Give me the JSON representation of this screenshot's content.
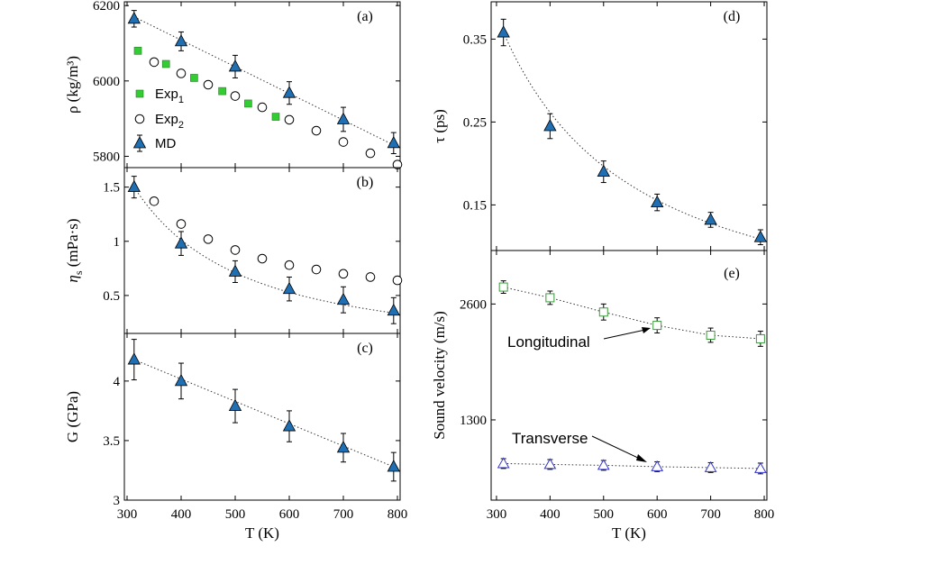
{
  "chart_data": [
    {
      "id": "a",
      "type": "scatter",
      "panel_label": "(a)",
      "ylabel": "ρ (kg/m³)",
      "xlim": [
        295,
        805
      ],
      "ylim": [
        5770,
        6210
      ],
      "yticks": [
        5800,
        6000,
        6200
      ],
      "ytick_labels": [
        "5800",
        "6000",
        "6200"
      ],
      "series": [
        {
          "name": "Exp1",
          "label_base": "Exp",
          "label_sub": "1",
          "marker": "square",
          "color": "#33cc33",
          "x": [
            320,
            372,
            424,
            476,
            524,
            575
          ],
          "y": [
            6080,
            6045,
            6008,
            5973,
            5940,
            5905
          ]
        },
        {
          "name": "Exp2",
          "label_base": "Exp",
          "label_sub": "2",
          "marker": "circle",
          "x": [
            350,
            400,
            450,
            500,
            550,
            600,
            650,
            700,
            750,
            800
          ],
          "y": [
            6050,
            6020,
            5990,
            5960,
            5930,
            5897,
            5868,
            5838,
            5808,
            5778
          ]
        },
        {
          "name": "MD",
          "label_base": "MD",
          "label_sub": "",
          "marker": "triangle",
          "color": "#1f6fb2",
          "x": [
            313,
            400,
            500,
            600,
            700,
            793
          ],
          "y": [
            6165,
            6105,
            6038,
            5968,
            5898,
            5835
          ],
          "err": [
            22,
            25,
            30,
            30,
            32,
            28
          ]
        }
      ],
      "fit": {
        "x": [
          313,
          793
        ],
        "y": [
          6170,
          5830
        ]
      },
      "legend": "left"
    },
    {
      "id": "b",
      "type": "scatter",
      "panel_label": "(b)",
      "ylabel_base": "η",
      "ylabel_sub": "s",
      "ylabel_rest": " (mPa·s)",
      "xlim": [
        295,
        805
      ],
      "ylim": [
        0.15,
        1.68
      ],
      "yticks": [
        0.5,
        1.0,
        1.5
      ],
      "ytick_labels": [
        "0.5",
        "1",
        "1.5"
      ],
      "series": [
        {
          "name": "Exp2",
          "marker": "circle",
          "x": [
            350,
            400,
            450,
            500,
            550,
            600,
            650,
            700,
            750,
            800
          ],
          "y": [
            1.37,
            1.16,
            1.02,
            0.92,
            0.84,
            0.78,
            0.74,
            0.7,
            0.67,
            0.64
          ]
        },
        {
          "name": "MD",
          "marker": "triangle",
          "color": "#1f6fb2",
          "x": [
            313,
            400,
            500,
            600,
            700,
            793
          ],
          "y": [
            1.5,
            0.98,
            0.72,
            0.56,
            0.46,
            0.36
          ],
          "err": [
            0.1,
            0.11,
            0.1,
            0.11,
            0.12,
            0.12
          ]
        }
      ],
      "fit": {
        "model": "power",
        "a": 0.2,
        "k": 1.7
      }
    },
    {
      "id": "c",
      "type": "scatter",
      "panel_label": "(c)",
      "ylabel": "G (GPa)",
      "xlabel": "T (K)",
      "xlim": [
        295,
        805
      ],
      "ylim": [
        3.0,
        4.4
      ],
      "yticks": [
        3.0,
        3.5,
        4.0
      ],
      "ytick_labels": [
        "3",
        "3.5",
        "4"
      ],
      "xticks": [
        300,
        400,
        500,
        600,
        700,
        800
      ],
      "xtick_labels": [
        "300",
        "400",
        "500",
        "600",
        "700",
        "800"
      ],
      "series": [
        {
          "name": "MD",
          "marker": "triangle",
          "color": "#1f6fb2",
          "x": [
            313,
            400,
            500,
            600,
            700,
            793
          ],
          "y": [
            4.18,
            4.0,
            3.79,
            3.62,
            3.44,
            3.28
          ],
          "err": [
            0.17,
            0.15,
            0.14,
            0.13,
            0.12,
            0.12
          ]
        }
      ],
      "fit": {
        "x": [
          313,
          793
        ],
        "y": [
          4.18,
          3.28
        ]
      }
    },
    {
      "id": "d",
      "type": "scatter",
      "panel_label": "(d)",
      "ylabel": "τ (ps)",
      "xlim": [
        290,
        805
      ],
      "ylim": [
        0.095,
        0.395
      ],
      "yticks": [
        0.15,
        0.25,
        0.35
      ],
      "ytick_labels": [
        "0.15",
        "0.25",
        "0.35"
      ],
      "series": [
        {
          "name": "MD",
          "marker": "triangle",
          "color": "#1f6fb2",
          "x": [
            313,
            400,
            500,
            600,
            700,
            793
          ],
          "y": [
            0.358,
            0.245,
            0.19,
            0.153,
            0.132,
            0.111
          ],
          "err": [
            0.016,
            0.015,
            0.013,
            0.01,
            0.009,
            0.009
          ]
        }
      ],
      "fit": {
        "model": "power",
        "a": 0.358,
        "k": 1.28
      }
    },
    {
      "id": "e",
      "type": "scatter",
      "panel_label": "(e)",
      "ylabel": "Sound velocity (m/s)",
      "xlabel": "T (K)",
      "xlim": [
        290,
        805
      ],
      "ylim": [
        400,
        3200
      ],
      "yticks": [
        1300,
        2600
      ],
      "ytick_labels": [
        "1300",
        "2600"
      ],
      "xticks": [
        300,
        400,
        500,
        600,
        700,
        800
      ],
      "xtick_labels": [
        "300",
        "400",
        "500",
        "600",
        "700",
        "800"
      ],
      "series": [
        {
          "name": "Longitudinal",
          "marker": "open-square",
          "color": "#3a9a3a",
          "x": [
            313,
            400,
            500,
            600,
            700,
            793
          ],
          "y": [
            2790,
            2670,
            2510,
            2360,
            2250,
            2210
          ],
          "err": [
            70,
            75,
            90,
            85,
            80,
            85
          ]
        },
        {
          "name": "Transverse",
          "marker": "open-triangle",
          "color": "#3333cc",
          "x": [
            313,
            400,
            500,
            600,
            700,
            793
          ],
          "y": [
            810,
            800,
            790,
            775,
            765,
            755
          ],
          "err": [
            55,
            55,
            55,
            55,
            55,
            60
          ]
        }
      ],
      "annotations": [
        "Longitudinal",
        "Transverse"
      ]
    }
  ]
}
